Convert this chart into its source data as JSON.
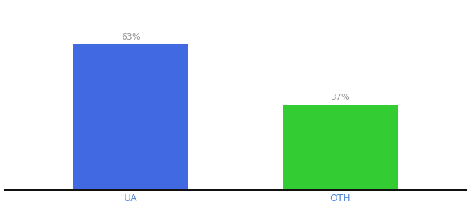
{
  "categories": [
    "UA",
    "OTH"
  ],
  "values": [
    63,
    37
  ],
  "bar_colors": [
    "#4169e1",
    "#33cc33"
  ],
  "value_labels": [
    "63%",
    "37%"
  ],
  "ylim": [
    0,
    80
  ],
  "tick_label_color": "#5b8dd9",
  "tick_label_fontsize": 10,
  "value_label_fontsize": 9,
  "value_label_color": "#999999",
  "bar_width": 0.55,
  "background_color": "#ffffff",
  "spine_color": "#111111"
}
